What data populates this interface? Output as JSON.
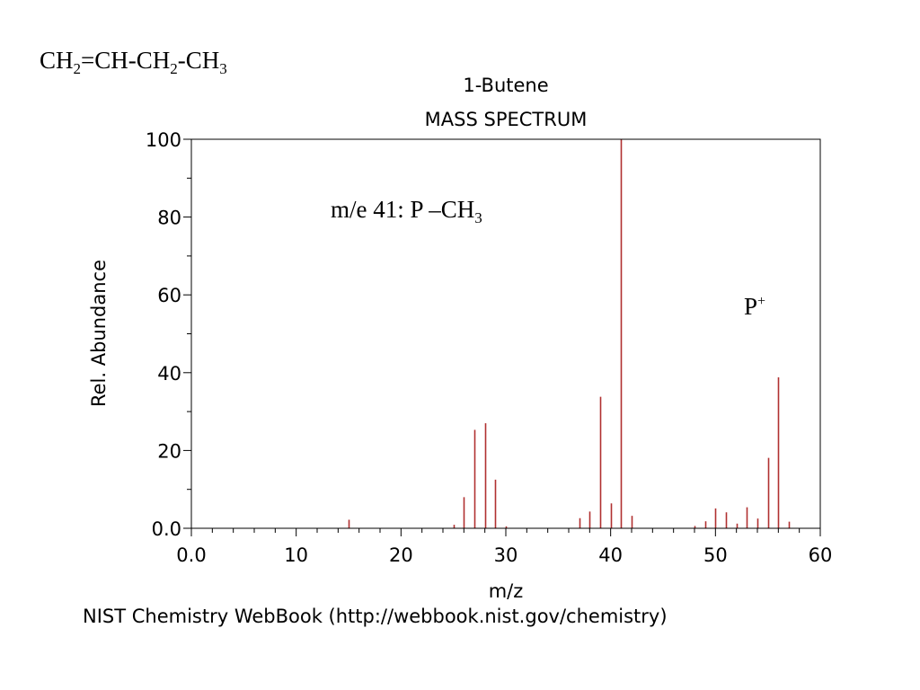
{
  "formula": {
    "parts": [
      {
        "text": "CH",
        "sub": false
      },
      {
        "text": "2",
        "sub": true
      },
      {
        "text": "=CH-CH",
        "sub": false
      },
      {
        "text": "2",
        "sub": true
      },
      {
        "text": "-CH",
        "sub": false
      },
      {
        "text": "3",
        "sub": true
      }
    ]
  },
  "annotations": {
    "loss": {
      "main": "m/e 41: P –CH",
      "sub": "3"
    },
    "parent": {
      "main": "P",
      "sup": "+"
    }
  },
  "footer": "NIST Chemistry WebBook (http://webbook.nist.gov/chemistry)",
  "colors": {
    "peak": "#b03030",
    "axis": "#000000"
  },
  "chart_data": {
    "type": "bar",
    "title": "1-Butene",
    "subtitle": "MASS SPECTRUM",
    "xlabel": "m/z",
    "ylabel": "Rel. Abundance",
    "xlim": [
      0,
      60
    ],
    "ylim": [
      0,
      100
    ],
    "xticks": [
      0,
      10,
      20,
      30,
      40,
      50,
      60
    ],
    "xtick_labels": [
      "0.0",
      "10",
      "20",
      "30",
      "40",
      "50",
      "60"
    ],
    "yticks": [
      0,
      20,
      40,
      60,
      80,
      100
    ],
    "ytick_labels": [
      "0.0",
      "20",
      "40",
      "60",
      "80",
      "100"
    ],
    "grid": false,
    "peaks": [
      {
        "mz": 15,
        "abundance": 2.2
      },
      {
        "mz": 25,
        "abundance": 0.9
      },
      {
        "mz": 26,
        "abundance": 8.0
      },
      {
        "mz": 27,
        "abundance": 25.3
      },
      {
        "mz": 28,
        "abundance": 27.0
      },
      {
        "mz": 29,
        "abundance": 12.5
      },
      {
        "mz": 30,
        "abundance": 0.5
      },
      {
        "mz": 37,
        "abundance": 2.6
      },
      {
        "mz": 38,
        "abundance": 4.3
      },
      {
        "mz": 39,
        "abundance": 33.8
      },
      {
        "mz": 40,
        "abundance": 6.4
      },
      {
        "mz": 41,
        "abundance": 100
      },
      {
        "mz": 42,
        "abundance": 3.2
      },
      {
        "mz": 48,
        "abundance": 0.6
      },
      {
        "mz": 49,
        "abundance": 1.8
      },
      {
        "mz": 50,
        "abundance": 5.1
      },
      {
        "mz": 51,
        "abundance": 4.1
      },
      {
        "mz": 52,
        "abundance": 1.2
      },
      {
        "mz": 53,
        "abundance": 5.4
      },
      {
        "mz": 54,
        "abundance": 2.5
      },
      {
        "mz": 55,
        "abundance": 18.1
      },
      {
        "mz": 56,
        "abundance": 38.8
      },
      {
        "mz": 57,
        "abundance": 1.7
      }
    ]
  }
}
